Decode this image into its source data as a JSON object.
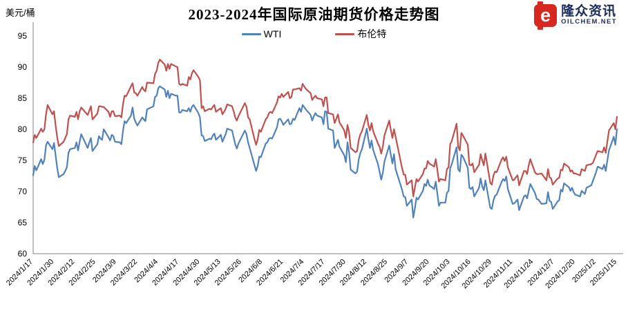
{
  "header": {
    "title": "2023-2024年国际原油期货价格走势图"
  },
  "logo": {
    "icon_letter": "e",
    "icon_color": "#d7281f",
    "name": "隆众资讯",
    "site": "OILCHEM.NET",
    "text_color": "#1b2d5b"
  },
  "chart_data": {
    "type": "line",
    "title": "2023-2024年国际原油期货价格走势图",
    "xlabel": "",
    "ylabel": "美元/桶",
    "ylim": [
      60,
      95
    ],
    "y_ticks": [
      95,
      90,
      85,
      80,
      75,
      70,
      65,
      60
    ],
    "grid": false,
    "legend_position": "top-center",
    "axis_color": "#808080",
    "x_tick_labels": [
      "2024/1/17",
      "2024/1/30",
      "2024/2/12",
      "2024/2/25",
      "2024/3/9",
      "2024/3/22",
      "2024/4/4",
      "2024/4/17",
      "2024/4/30",
      "2024/5/13",
      "2024/5/26",
      "2024/6/8",
      "2024/6/21",
      "2024/7/4",
      "2024/7/17",
      "2024/7/30",
      "2024/8/12",
      "2024/8/25",
      "2024/9/7",
      "2024/9/20",
      "2024/10/3",
      "2024/10/16",
      "2024/10/29",
      "2024/11/11",
      "2024/11/24",
      "2024/12/7",
      "2024/12/20",
      "2025/1/2",
      "2025/1/15"
    ],
    "x": [
      "2024/1/17",
      "2024/1/18",
      "2024/1/19",
      "2024/1/22",
      "2024/1/23",
      "2024/1/24",
      "2024/1/25",
      "2024/1/26",
      "2024/1/29",
      "2024/1/30",
      "2024/1/31",
      "2024/2/1",
      "2024/2/2",
      "2024/2/5",
      "2024/2/6",
      "2024/2/7",
      "2024/2/8",
      "2024/2/9",
      "2024/2/12",
      "2024/2/13",
      "2024/2/14",
      "2024/2/15",
      "2024/2/16",
      "2024/2/20",
      "2024/2/21",
      "2024/2/22",
      "2024/2/23",
      "2024/2/26",
      "2024/2/27",
      "2024/2/28",
      "2024/2/29",
      "2024/3/1",
      "2024/3/4",
      "2024/3/5",
      "2024/3/6",
      "2024/3/7",
      "2024/3/8",
      "2024/3/11",
      "2024/3/12",
      "2024/3/13",
      "2024/3/14",
      "2024/3/15",
      "2024/3/18",
      "2024/3/19",
      "2024/3/20",
      "2024/3/21",
      "2024/3/22",
      "2024/3/25",
      "2024/3/26",
      "2024/3/27",
      "2024/3/28",
      "2024/4/1",
      "2024/4/2",
      "2024/4/3",
      "2024/4/4",
      "2024/4/5",
      "2024/4/8",
      "2024/4/9",
      "2024/4/10",
      "2024/4/11",
      "2024/4/12",
      "2024/4/15",
      "2024/4/16",
      "2024/4/17",
      "2024/4/18",
      "2024/4/19",
      "2024/4/22",
      "2024/4/23",
      "2024/4/24",
      "2024/4/25",
      "2024/4/26",
      "2024/4/29",
      "2024/4/30",
      "2024/5/1",
      "2024/5/2",
      "2024/5/3",
      "2024/5/6",
      "2024/5/7",
      "2024/5/8",
      "2024/5/9",
      "2024/5/10",
      "2024/5/13",
      "2024/5/14",
      "2024/5/15",
      "2024/5/16",
      "2024/5/17",
      "2024/5/20",
      "2024/5/21",
      "2024/5/22",
      "2024/5/23",
      "2024/5/24",
      "2024/5/28",
      "2024/5/29",
      "2024/5/30",
      "2024/5/31",
      "2024/6/3",
      "2024/6/4",
      "2024/6/5",
      "2024/6/6",
      "2024/6/7",
      "2024/6/10",
      "2024/6/11",
      "2024/6/12",
      "2024/6/13",
      "2024/6/14",
      "2024/6/17",
      "2024/6/18",
      "2024/6/19",
      "2024/6/20",
      "2024/6/21",
      "2024/6/24",
      "2024/6/25",
      "2024/6/26",
      "2024/6/27",
      "2024/6/28",
      "2024/7/1",
      "2024/7/2",
      "2024/7/3",
      "2024/7/5",
      "2024/7/8",
      "2024/7/9",
      "2024/7/10",
      "2024/7/11",
      "2024/7/12",
      "2024/7/15",
      "2024/7/16",
      "2024/7/17",
      "2024/7/18",
      "2024/7/19",
      "2024/7/22",
      "2024/7/23",
      "2024/7/24",
      "2024/7/25",
      "2024/7/26",
      "2024/7/29",
      "2024/7/30",
      "2024/7/31",
      "2024/8/1",
      "2024/8/2",
      "2024/8/5",
      "2024/8/6",
      "2024/8/7",
      "2024/8/8",
      "2024/8/9",
      "2024/8/12",
      "2024/8/13",
      "2024/8/14",
      "2024/8/15",
      "2024/8/16",
      "2024/8/19",
      "2024/8/20",
      "2024/8/21",
      "2024/8/22",
      "2024/8/23",
      "2024/8/26",
      "2024/8/27",
      "2024/8/28",
      "2024/8/29",
      "2024/8/30",
      "2024/9/3",
      "2024/9/4",
      "2024/9/5",
      "2024/9/6",
      "2024/9/9",
      "2024/9/10",
      "2024/9/11",
      "2024/9/12",
      "2024/9/13",
      "2024/9/16",
      "2024/9/17",
      "2024/9/18",
      "2024/9/19",
      "2024/9/20",
      "2024/9/23",
      "2024/9/24",
      "2024/9/25",
      "2024/9/26",
      "2024/9/27",
      "2024/9/30",
      "2024/10/1",
      "2024/10/2",
      "2024/10/3",
      "2024/10/4",
      "2024/10/7",
      "2024/10/8",
      "2024/10/9",
      "2024/10/10",
      "2024/10/11",
      "2024/10/14",
      "2024/10/15",
      "2024/10/16",
      "2024/10/17",
      "2024/10/18",
      "2024/10/21",
      "2024/10/22",
      "2024/10/23",
      "2024/10/24",
      "2024/10/25",
      "2024/10/28",
      "2024/10/29",
      "2024/10/30",
      "2024/10/31",
      "2024/11/1",
      "2024/11/4",
      "2024/11/5",
      "2024/11/6",
      "2024/11/7",
      "2024/11/8",
      "2024/11/11",
      "2024/11/12",
      "2024/11/13",
      "2024/11/14",
      "2024/11/15",
      "2024/11/18",
      "2024/11/19",
      "2024/11/20",
      "2024/11/21",
      "2024/11/22",
      "2024/11/25",
      "2024/11/26",
      "2024/11/27",
      "2024/11/29",
      "2024/12/2",
      "2024/12/3",
      "2024/12/4",
      "2024/12/5",
      "2024/12/6",
      "2024/12/9",
      "2024/12/10",
      "2024/12/11",
      "2024/12/12",
      "2024/12/13",
      "2024/12/16",
      "2024/12/17",
      "2024/12/18",
      "2024/12/19",
      "2024/12/20",
      "2024/12/23",
      "2024/12/24",
      "2024/12/26",
      "2024/12/27",
      "2024/12/30",
      "2024/12/31",
      "2025/1/2",
      "2025/1/3",
      "2025/1/6",
      "2025/1/7",
      "2025/1/8",
      "2025/1/10",
      "2025/1/13",
      "2025/1/14",
      "2025/1/15"
    ],
    "series": [
      {
        "name": "WTI",
        "color": "#4F81BD",
        "values": [
          72.6,
          74.1,
          73.4,
          75.2,
          74.4,
          75.1,
          77.4,
          78.0,
          76.8,
          77.8,
          75.8,
          73.8,
          72.3,
          72.8,
          73.3,
          73.9,
          76.2,
          76.8,
          77.0,
          77.9,
          76.6,
          78.0,
          79.2,
          77.0,
          77.9,
          78.6,
          76.5,
          77.6,
          78.9,
          78.5,
          78.3,
          80.0,
          78.7,
          78.2,
          79.1,
          78.9,
          78.0,
          77.9,
          77.6,
          79.7,
          81.3,
          81.0,
          82.2,
          83.5,
          81.7,
          81.1,
          80.6,
          81.9,
          81.6,
          81.3,
          83.2,
          83.7,
          85.2,
          85.4,
          86.6,
          86.9,
          86.4,
          85.2,
          86.2,
          85.0,
          85.7,
          85.4,
          85.4,
          82.7,
          82.7,
          83.1,
          82.9,
          83.4,
          82.8,
          83.6,
          83.9,
          82.6,
          81.9,
          79.0,
          78.9,
          78.1,
          78.5,
          78.4,
          79.0,
          79.3,
          78.3,
          79.1,
          78.0,
          78.6,
          79.2,
          80.1,
          79.8,
          78.7,
          77.6,
          76.9,
          77.7,
          79.8,
          79.2,
          77.9,
          77.0,
          74.2,
          73.3,
          74.1,
          75.6,
          75.5,
          77.7,
          77.9,
          78.5,
          78.6,
          78.5,
          80.3,
          81.6,
          81.7,
          81.3,
          80.7,
          81.6,
          80.8,
          80.9,
          81.7,
          81.5,
          83.4,
          82.8,
          83.9,
          83.2,
          82.3,
          81.4,
          82.1,
          82.6,
          82.2,
          81.9,
          80.8,
          82.9,
          82.8,
          80.1,
          79.8,
          77.0,
          77.6,
          78.3,
          77.2,
          75.8,
          74.7,
          77.9,
          76.3,
          73.5,
          72.9,
          73.2,
          75.2,
          76.2,
          76.8,
          80.1,
          78.4,
          77.0,
          78.2,
          76.7,
          74.4,
          73.2,
          71.9,
          73.0,
          74.8,
          77.4,
          75.9,
          74.5,
          76.0,
          73.6,
          70.3,
          69.2,
          69.1,
          67.7,
          68.7,
          65.8,
          67.3,
          69.0,
          68.7,
          70.1,
          71.2,
          70.9,
          71.9,
          71.0,
          70.4,
          71.6,
          69.7,
          67.7,
          68.2,
          68.2,
          69.8,
          70.1,
          73.7,
          74.4,
          77.1,
          73.6,
          73.2,
          75.9,
          75.6,
          73.8,
          70.6,
          70.4,
          70.7,
          69.2,
          70.6,
          72.1,
          70.8,
          70.2,
          71.8,
          67.4,
          67.2,
          68.6,
          69.3,
          69.5,
          71.5,
          72.0,
          71.7,
          72.4,
          70.4,
          68.0,
          68.1,
          68.4,
          68.7,
          67.0,
          69.2,
          69.4,
          68.9,
          70.1,
          71.2,
          69.7,
          68.8,
          68.7,
          68.0,
          68.1,
          69.9,
          68.5,
          68.3,
          67.2,
          68.4,
          68.6,
          70.3,
          70.0,
          71.3,
          70.7,
          70.1,
          70.6,
          69.9,
          69.5,
          69.2,
          70.1,
          69.6,
          70.6,
          71.0,
          71.7,
          73.1,
          74.0,
          73.6,
          74.3,
          73.3,
          76.6,
          78.8,
          77.5,
          80.0
        ]
      },
      {
        "name": "布伦特",
        "color": "#C0504D",
        "values": [
          77.9,
          79.1,
          78.6,
          80.1,
          79.6,
          80.0,
          82.4,
          83.9,
          82.4,
          82.9,
          80.6,
          78.7,
          77.3,
          78.0,
          78.6,
          79.2,
          81.6,
          82.2,
          82.0,
          82.8,
          81.6,
          82.9,
          83.5,
          82.3,
          83.0,
          83.7,
          81.6,
          82.5,
          83.7,
          83.7,
          83.6,
          83.6,
          82.8,
          82.0,
          82.9,
          82.9,
          82.1,
          82.2,
          81.9,
          84.0,
          85.4,
          85.3,
          86.9,
          87.4,
          85.9,
          85.8,
          85.4,
          86.8,
          86.3,
          86.1,
          87.5,
          87.4,
          88.9,
          89.4,
          90.7,
          91.2,
          90.4,
          89.4,
          90.5,
          89.7,
          90.5,
          90.1,
          90.0,
          87.3,
          87.1,
          87.3,
          87.0,
          88.4,
          88.0,
          89.0,
          89.5,
          88.4,
          87.9,
          83.4,
          83.7,
          82.9,
          83.3,
          83.2,
          83.6,
          83.9,
          82.8,
          83.4,
          82.4,
          82.8,
          83.3,
          84.0,
          83.7,
          82.9,
          81.9,
          81.4,
          82.1,
          84.2,
          83.6,
          81.9,
          81.6,
          78.4,
          77.5,
          78.4,
          79.9,
          79.6,
          81.6,
          81.9,
          82.6,
          82.8,
          82.6,
          84.3,
          85.3,
          85.1,
          85.7,
          85.2,
          86.0,
          85.0,
          85.2,
          86.4,
          86.4,
          86.6,
          86.2,
          87.3,
          86.5,
          85.8,
          84.7,
          85.1,
          85.4,
          85.0,
          84.8,
          83.7,
          85.1,
          85.1,
          82.6,
          82.4,
          81.0,
          81.7,
          82.4,
          81.1,
          79.8,
          78.6,
          80.7,
          79.5,
          77.0,
          76.3,
          76.5,
          78.3,
          79.2,
          79.7,
          82.3,
          80.7,
          79.8,
          81.0,
          79.7,
          77.7,
          77.2,
          76.1,
          77.2,
          79.0,
          81.4,
          79.9,
          78.6,
          80.0,
          78.8,
          73.8,
          72.7,
          72.7,
          71.1,
          71.8,
          69.2,
          70.6,
          72.0,
          71.6,
          72.8,
          73.7,
          73.7,
          74.9,
          74.5,
          74.0,
          75.2,
          73.5,
          71.6,
          72.0,
          71.8,
          73.6,
          73.9,
          77.6,
          78.1,
          80.9,
          77.2,
          76.6,
          79.4,
          79.0,
          77.5,
          74.3,
          74.2,
          74.5,
          73.1,
          74.3,
          76.0,
          75.0,
          74.2,
          76.1,
          71.4,
          71.1,
          72.6,
          73.2,
          73.1,
          75.1,
          75.5,
          74.9,
          75.6,
          73.9,
          71.8,
          71.9,
          72.3,
          72.6,
          71.0,
          73.3,
          73.3,
          72.8,
          74.2,
          75.2,
          73.0,
          72.8,
          72.8,
          72.9,
          71.8,
          73.6,
          72.3,
          72.1,
          71.1,
          72.1,
          72.2,
          73.5,
          73.4,
          74.5,
          73.9,
          73.2,
          73.4,
          72.9,
          72.9,
          72.6,
          73.6,
          73.3,
          74.2,
          74.4,
          74.6,
          75.9,
          76.5,
          76.3,
          77.1,
          76.2,
          79.8,
          81.0,
          80.0,
          82.0
        ]
      }
    ]
  }
}
